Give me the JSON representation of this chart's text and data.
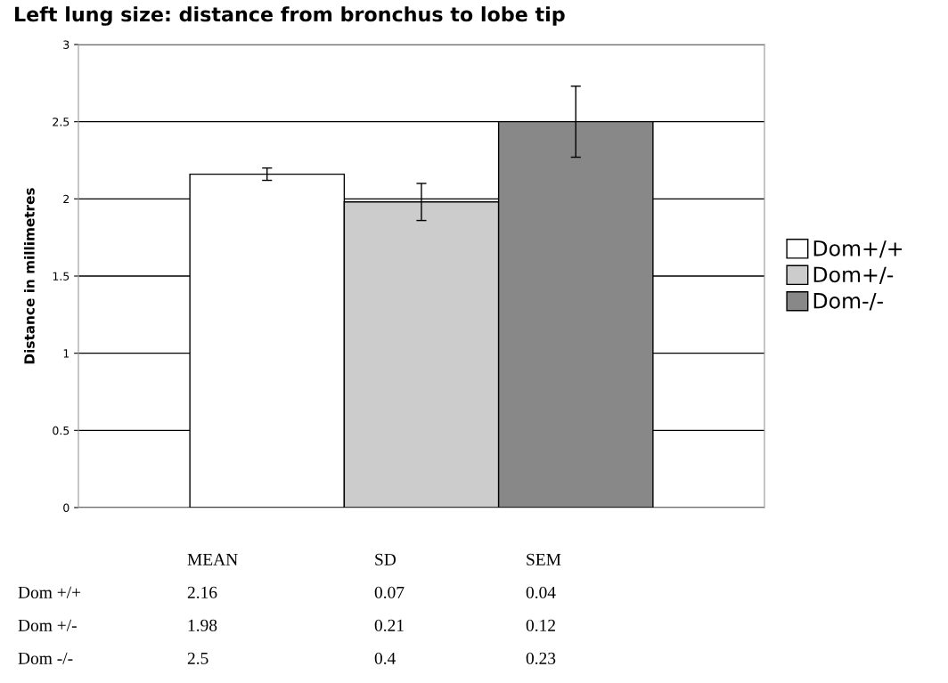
{
  "chart_data": {
    "type": "bar",
    "title": "Left lung size: distance from bronchus to lobe tip",
    "ylabel": "Distance in millimetres",
    "categories": [
      null
    ],
    "series": [
      {
        "name": "Dom+/+",
        "color": "#ffffff",
        "values": [
          2.16
        ],
        "errors": [
          0.04
        ]
      },
      {
        "name": "Dom+/-",
        "color": "#cccccc",
        "values": [
          1.98
        ],
        "errors": [
          0.12
        ]
      },
      {
        "name": "Dom-/-",
        "color": "#888888",
        "values": [
          2.5
        ],
        "errors": [
          0.23
        ]
      }
    ],
    "ylim": [
      0,
      3
    ],
    "yticks": [
      0,
      0.5,
      1,
      1.5,
      2,
      2.5,
      3
    ],
    "grid": "y",
    "legend": "right",
    "annotations": [
      "MEAN",
      "SD",
      "SEM",
      "Dom +/+",
      "2.16",
      "0.07",
      "0.04",
      "Dom +/-",
      "1.98",
      "0.21",
      "0.12",
      "Dom -/-",
      "2.5",
      "0.4",
      "0.23"
    ]
  }
}
